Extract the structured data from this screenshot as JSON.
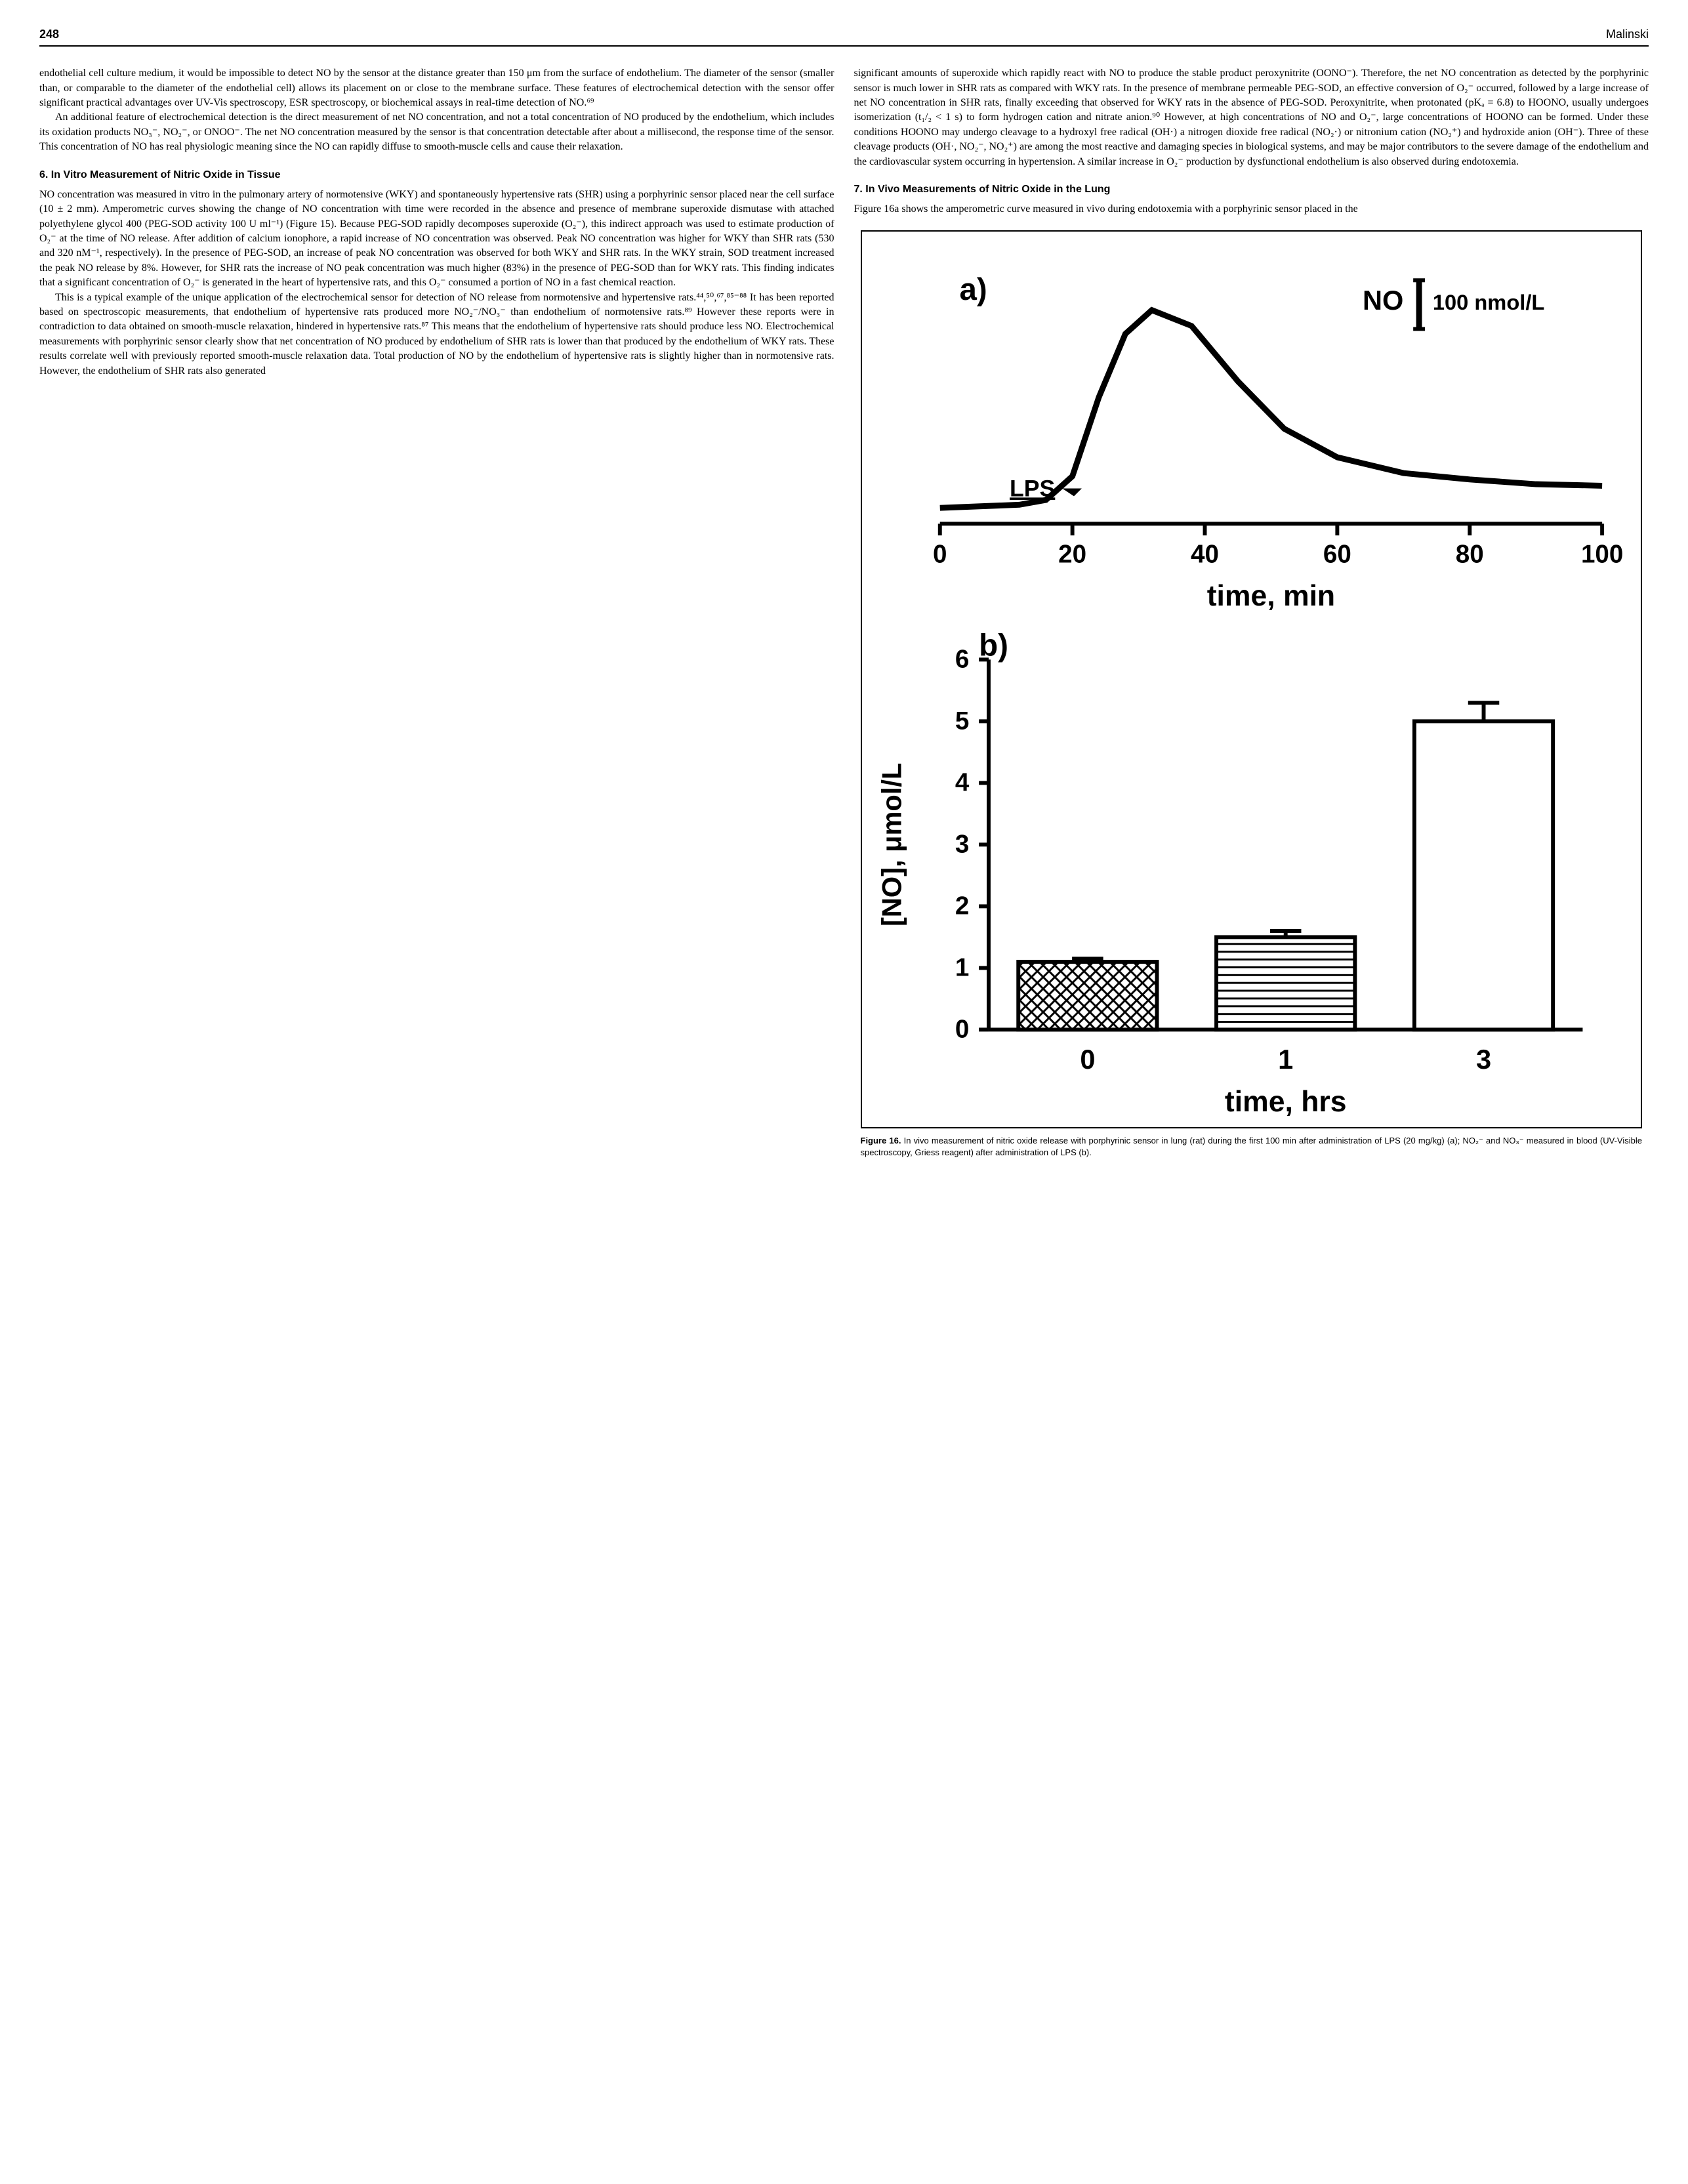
{
  "header": {
    "page_number": "248",
    "author": "Malinski"
  },
  "col1": {
    "p1": "endothelial cell culture medium, it would be impossible to detect NO by the sensor at the distance greater than 150 μm from the surface of endothelium. The diameter of the sensor (smaller than, or comparable to the diameter of the endothelial cell) allows its placement on or close to the membrane surface. These features of electrochemical detection with the sensor offer significant practical advantages over UV-Vis spectroscopy, ESR spectroscopy, or biochemical assays in real-time detection of NO.⁶⁹",
    "p2": "An additional feature of electrochemical detection is the direct measurement of net NO concentration, and not a total concentration of NO produced by the endothelium, which includes its oxidation products NO₃⁻, NO₂⁻, or ONOO⁻. The net NO concentration measured by the sensor is that concentration detectable after about a millisecond, the response time of the sensor. This concentration of NO has real physiologic meaning since the NO can rapidly diffuse to smooth-muscle cells and cause their relaxation.",
    "sec6_title": "6. In Vitro Measurement of Nitric Oxide in Tissue",
    "p3": "NO concentration was measured in vitro in the pulmonary artery of normotensive (WKY) and spontaneously hypertensive rats (SHR) using a porphyrinic sensor placed near the cell surface (10 ± 2 mm). Amperometric curves showing the change of NO concentration with time were recorded in the absence and presence of membrane superoxide dismutase with attached polyethylene glycol 400 (PEG-SOD activity 100 U ml⁻¹) (Figure 15). Because PEG-SOD rapidly decomposes superoxide (O₂⁻), this indirect approach was used to estimate production of O₂⁻ at the time of NO release. After addition of calcium ionophore, a rapid increase of NO concentration was observed. Peak NO concentration was higher for WKY than SHR rats (530 and 320 nM⁻¹, respectively). In the presence of PEG-SOD, an increase of peak NO concentration was observed for both WKY and SHR rats. In the WKY strain, SOD treatment increased the peak NO release by 8%. However, for SHR rats the increase of NO peak concentration was much higher (83%) in the presence of PEG-SOD than for WKY rats. This finding indicates that a significant concentration of O₂⁻ is generated in the heart of hypertensive rats, and this O₂⁻ consumed a portion of NO in a fast chemical reaction.",
    "p4": "This is a typical example of the unique application of the electrochemical sensor for detection of NO release from normotensive and hypertensive rats.⁴⁴,⁵⁰,⁶⁷,⁸⁵⁻⁸⁸ It has been reported based on spectroscopic measurements, that endothelium of hypertensive rats produced more NO₂⁻/NO₃⁻ than endothelium of normotensive rats.⁸⁹ However these reports were in contradiction to data obtained on smooth-muscle relaxation, hindered in hypertensive rats.⁸⁷ This means that the endothelium of hypertensive rats should produce less NO. Electrochemical measurements with porphyrinic sensor clearly show that net concentration of NO produced by endothelium of SHR rats is lower than that produced by the endothelium of WKY rats. These results correlate well with previously reported smooth-muscle relaxation data. Total production of NO by the endothelium of hypertensive rats is slightly higher than in normotensive rats. However, the endothelium of SHR rats also generated"
  },
  "col2": {
    "p1": "significant amounts of superoxide which rapidly react with NO to produce the stable product peroxynitrite (OONO⁻). Therefore, the net NO concentration as detected by the porphyrinic sensor is much lower in SHR rats as compared with WKY rats. In the presence of membrane permeable PEG-SOD, an effective conversion of O₂⁻ occurred, followed by a large increase of net NO concentration in SHR rats, finally exceeding that observed for WKY rats in the absence of PEG-SOD. Peroxynitrite, when protonated (pKₐ = 6.8) to HOONO, usually undergoes isomerization (t₁/₂ < 1 s) to form hydrogen cation and nitrate anion.⁹⁰ However, at high concentrations of NO and O₂⁻, large concentrations of HOONO can be formed. Under these conditions HOONO may undergo cleavage to a hydroxyl free radical (OH·) a nitrogen dioxide free radical (NO₂·) or nitronium cation (NO₂⁺) and hydroxide anion (OH⁻). Three of these cleavage products (OH·, NO₂⁻, NO₂⁺) are among the most reactive and damaging species in biological systems, and may be major contributors to the severe damage of the endothelium and the cardiovascular system occurring in hypertension. A similar increase in O₂⁻ production by dysfunctional endothelium is also observed during endotoxemia.",
    "sec7_title": "7. In Vivo Measurements of Nitric Oxide in the Lung",
    "p2": "Figure 16a shows the amperometric curve measured in vivo during endotoxemia with a porphyrinic sensor placed in the"
  },
  "figure16": {
    "panel_a": {
      "label": "a)",
      "no_label": "NO",
      "scale_label": "100 nmol/L",
      "lps_label": "LPS",
      "xlabel": "time, min",
      "xticks": [
        "0",
        "20",
        "40",
        "60",
        "80",
        "100"
      ],
      "xtick_positions": [
        0,
        20,
        40,
        60,
        80,
        100
      ],
      "curve_points": [
        [
          0,
          0.1
        ],
        [
          12,
          0.12
        ],
        [
          16,
          0.15
        ],
        [
          20,
          0.3
        ],
        [
          24,
          0.8
        ],
        [
          28,
          1.2
        ],
        [
          32,
          1.35
        ],
        [
          38,
          1.25
        ],
        [
          45,
          0.9
        ],
        [
          52,
          0.6
        ],
        [
          60,
          0.42
        ],
        [
          70,
          0.32
        ],
        [
          80,
          0.28
        ],
        [
          90,
          0.25
        ],
        [
          100,
          0.24
        ]
      ],
      "line_width": 3,
      "line_color": "#000000",
      "background_color": "#ffffff"
    },
    "panel_b": {
      "label": "b)",
      "ylabel": "[NO], μmol/L",
      "xlabel": "time, hrs",
      "xticks": [
        "0",
        "1",
        "3"
      ],
      "yticks": [
        "0",
        "1",
        "2",
        "3",
        "4",
        "5",
        "6"
      ],
      "ylim": [
        0,
        6
      ],
      "bars": [
        {
          "x": 0,
          "height": 1.1,
          "err": 0.05,
          "fill": "crosshatch"
        },
        {
          "x": 1,
          "height": 1.5,
          "err": 0.1,
          "fill": "horizontal"
        },
        {
          "x": 2,
          "height": 5.0,
          "err": 0.3,
          "fill": "white"
        }
      ],
      "bar_width": 0.7,
      "line_color": "#000000",
      "background_color": "#ffffff"
    },
    "caption_bold": "Figure 16.",
    "caption": "In vivo measurement of nitric oxide release with porphyrinic sensor in lung (rat) during the first 100 min after administration of LPS (20 mg/kg) (a); NO₂⁻ and NO₃⁻ measured in blood (UV-Visible spectroscopy, Griess reagent) after administration of LPS (b)."
  }
}
